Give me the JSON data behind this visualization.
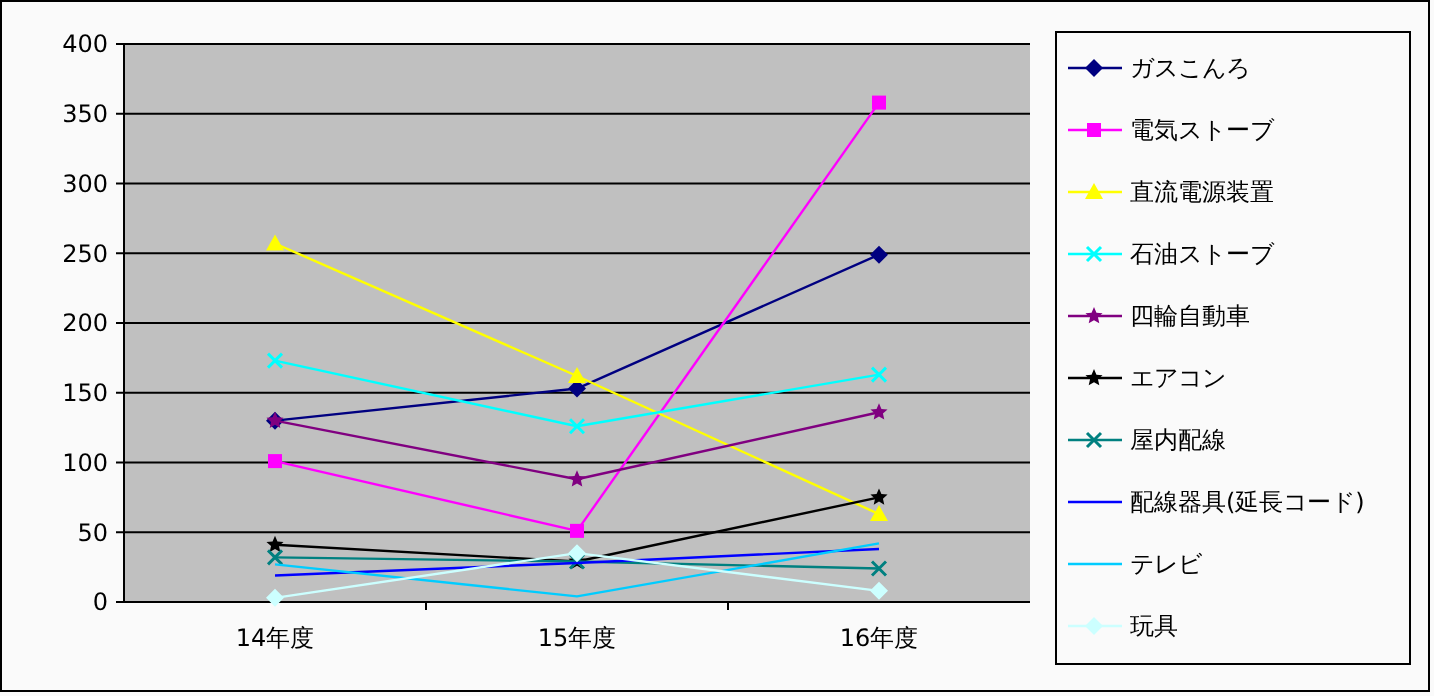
{
  "chart_data": {
    "type": "line",
    "categories": [
      "14年度",
      "15年度",
      "16年度"
    ],
    "ylim": [
      0,
      400
    ],
    "yticks": [
      0,
      50,
      100,
      150,
      200,
      250,
      300,
      350,
      400
    ],
    "grid": "y",
    "legend": "right",
    "series": [
      {
        "name": "ガスこんろ",
        "color": "#000080",
        "marker": "diamond",
        "values": [
          130,
          153,
          249
        ]
      },
      {
        "name": "電気ストーブ",
        "color": "#ff00ff",
        "marker": "square",
        "values": [
          101,
          51,
          358
        ]
      },
      {
        "name": "直流電源装置",
        "color": "#ffff00",
        "marker": "triangle",
        "values": [
          257,
          162,
          63
        ]
      },
      {
        "name": "石油ストーブ",
        "color": "#00ffff",
        "marker": "cross",
        "values": [
          173,
          126,
          163
        ]
      },
      {
        "name": "四輪自動車",
        "color": "#800080",
        "marker": "star",
        "values": [
          130,
          88,
          136
        ]
      },
      {
        "name": "エアコン",
        "color": "#000000",
        "marker": "star",
        "values": [
          41,
          29,
          75
        ]
      },
      {
        "name": "屋内配線",
        "color": "#008080",
        "marker": "cross",
        "values": [
          32,
          29,
          24
        ]
      },
      {
        "name": "配線器具(延長コード)",
        "color": "#0000ff",
        "marker": "none",
        "values": [
          19,
          28,
          38
        ]
      },
      {
        "name": "テレビ",
        "color": "#00ccff",
        "marker": "none",
        "values": [
          27,
          4,
          42
        ]
      },
      {
        "name": "玩具",
        "color": "#ccffff",
        "marker": "diamond",
        "values": [
          3,
          35,
          8
        ]
      }
    ]
  }
}
